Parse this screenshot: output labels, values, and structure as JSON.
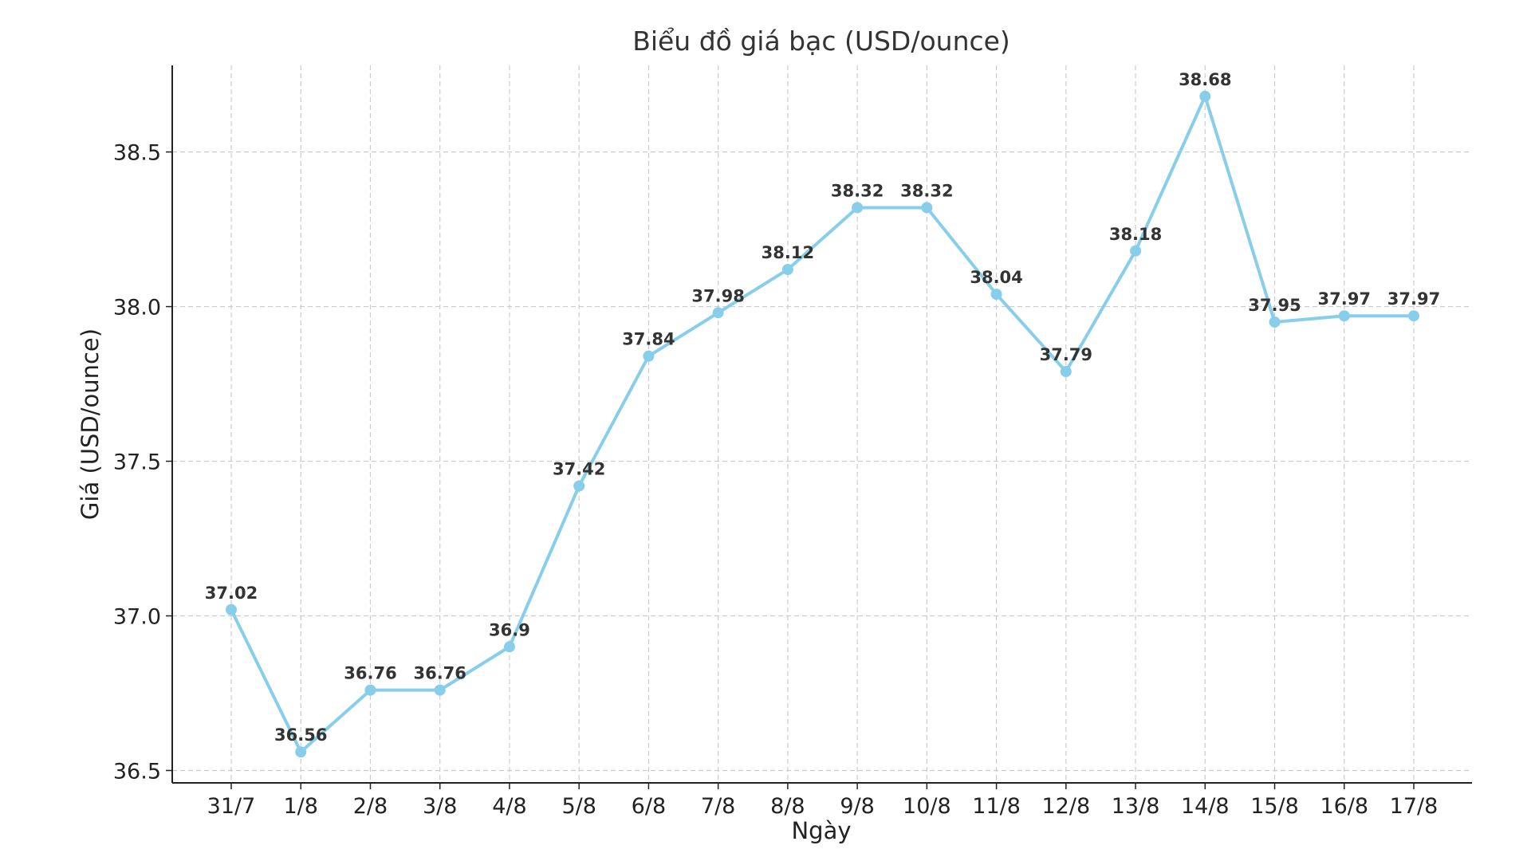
{
  "chart_data": {
    "type": "line",
    "title": "Biểu đồ giá bạc (USD/ounce)",
    "xlabel": "Ngày",
    "ylabel": "Giá (USD/ounce)",
    "categories": [
      "31/7",
      "1/8",
      "2/8",
      "3/8",
      "4/8",
      "5/8",
      "6/8",
      "7/8",
      "8/8",
      "9/8",
      "10/8",
      "11/8",
      "12/8",
      "13/8",
      "14/8",
      "15/8",
      "16/8",
      "17/8"
    ],
    "series": [
      {
        "values": [
          37.02,
          36.56,
          36.76,
          36.76,
          36.9,
          37.42,
          37.84,
          37.98,
          38.12,
          38.32,
          38.32,
          38.04,
          37.79,
          38.18,
          38.68,
          37.95,
          37.97,
          37.97
        ],
        "color": "#87CEEB"
      }
    ],
    "yticks": [
      "36.5",
      "37.0",
      "37.5",
      "38.0",
      "38.5"
    ],
    "ylim": [
      36.46,
      38.78
    ],
    "grid": true,
    "marker": "circle",
    "data_labels": true
  }
}
